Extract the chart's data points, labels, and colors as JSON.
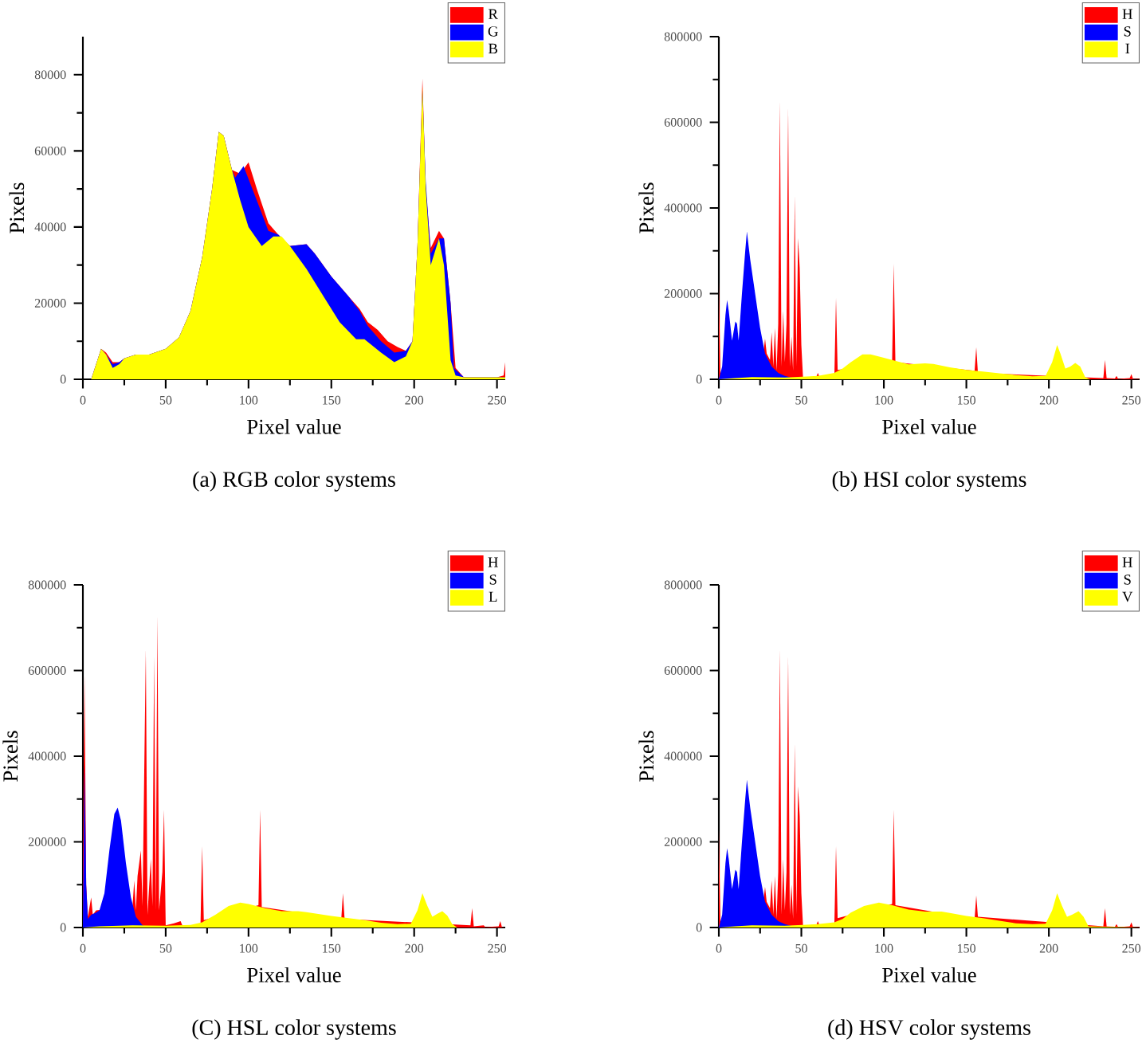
{
  "chart_data": [
    {
      "type": "area",
      "title": "(a) RGB color systems",
      "xlabel": "Pixel value",
      "ylabel": "Pixels",
      "xlim": [
        0,
        255
      ],
      "ylim": [
        0,
        90000
      ],
      "xticks": [
        0,
        50,
        100,
        150,
        200,
        250
      ],
      "yticks": [
        0,
        20000,
        40000,
        60000,
        80000
      ],
      "legend": "top right",
      "series": [
        {
          "name": "R",
          "color": "#ff0000",
          "x": [
            5,
            8,
            11,
            14,
            18,
            22,
            25,
            32,
            40,
            50,
            58,
            65,
            72,
            78,
            82,
            85,
            90,
            95,
            100,
            105,
            112,
            118,
            125,
            135,
            140,
            150,
            160,
            167,
            172,
            178,
            184,
            190,
            195,
            199,
            202,
            205,
            207,
            210,
            215,
            218,
            222,
            225,
            230,
            250,
            254,
            255
          ],
          "values": [
            0,
            4000,
            8000,
            7000,
            4500,
            4500,
            5500,
            6500,
            6500,
            8000,
            11000,
            18000,
            32000,
            50000,
            65000,
            64000,
            55000,
            54000,
            57000,
            50000,
            41000,
            38000,
            35000,
            35500,
            33000,
            27000,
            22000,
            18500,
            15000,
            13000,
            10000,
            8500,
            7500,
            10000,
            35000,
            79000,
            50000,
            34500,
            39000,
            37000,
            20000,
            3000,
            500,
            500,
            1000,
            4500
          ]
        },
        {
          "name": "G",
          "color": "#0000ff",
          "x": [
            5,
            8,
            11,
            14,
            18,
            22,
            25,
            32,
            40,
            50,
            58,
            65,
            72,
            78,
            82,
            85,
            90,
            92,
            97,
            105,
            112,
            118,
            125,
            135,
            140,
            150,
            160,
            167,
            172,
            180,
            188,
            195,
            199,
            202,
            205,
            207,
            210,
            215,
            218,
            222,
            224,
            230,
            250,
            255
          ],
          "values": [
            0,
            4000,
            8000,
            6500,
            4000,
            4500,
            5500,
            6500,
            6500,
            8000,
            11000,
            18000,
            32000,
            50000,
            65000,
            64000,
            55000,
            53000,
            56000,
            47000,
            39000,
            38000,
            35000,
            35500,
            33000,
            27000,
            22000,
            18000,
            14000,
            10000,
            7000,
            7500,
            10000,
            35000,
            76000,
            52000,
            33000,
            37000,
            37000,
            20000,
            3000,
            500,
            500,
            500
          ]
        },
        {
          "name": "B",
          "color": "#ffff00",
          "x": [
            5,
            8,
            11,
            14,
            18,
            22,
            25,
            32,
            40,
            50,
            58,
            65,
            72,
            78,
            82,
            85,
            90,
            95,
            100,
            108,
            115,
            120,
            125,
            135,
            145,
            155,
            165,
            170,
            180,
            188,
            195,
            199,
            202,
            205,
            207,
            210,
            215,
            218,
            222,
            225,
            230,
            250,
            255
          ],
          "values": [
            0,
            4000,
            8000,
            6500,
            3000,
            4000,
            5500,
            6500,
            6500,
            8000,
            11000,
            18000,
            32000,
            50000,
            65000,
            64000,
            55000,
            47000,
            40000,
            35000,
            37500,
            37500,
            35000,
            29000,
            22000,
            15000,
            10500,
            10500,
            7000,
            4500,
            6000,
            10000,
            35000,
            77000,
            50000,
            30000,
            37000,
            30000,
            5000,
            1000,
            500,
            500,
            500
          ]
        }
      ]
    },
    {
      "type": "area",
      "title": "(b) HSI color systems",
      "xlabel": "Pixel value",
      "ylabel": "Pixels",
      "xlim": [
        0,
        255
      ],
      "ylim": [
        0,
        800000
      ],
      "xticks": [
        0,
        50,
        100,
        150,
        200,
        250
      ],
      "yticks": [
        0,
        200000,
        400000,
        600000,
        800000
      ],
      "legend": "top right",
      "series": [
        {
          "name": "H",
          "color": "#ff0000",
          "x": [
            0,
            1,
            25,
            27,
            28,
            29,
            31,
            32,
            33,
            34,
            35,
            36,
            37,
            38,
            39,
            40,
            41,
            42,
            43,
            44,
            45,
            46,
            47,
            48,
            49,
            50,
            51,
            59,
            60,
            61,
            70,
            71,
            72,
            105,
            106,
            107,
            155,
            156,
            157,
            233,
            234,
            235,
            240,
            241,
            242,
            249,
            250,
            251,
            255
          ],
          "values": [
            230000,
            5000,
            5000,
            60000,
            95000,
            60000,
            45000,
            110000,
            30000,
            120000,
            20000,
            130000,
            650000,
            30000,
            160000,
            40000,
            130000,
            635000,
            30000,
            100000,
            20000,
            430000,
            30000,
            330000,
            260000,
            80000,
            5000,
            5000,
            15000,
            5000,
            5000,
            190000,
            22000,
            40000,
            270000,
            40000,
            20000,
            75000,
            15000,
            3000,
            45000,
            3000,
            2000,
            8000,
            1000,
            3000,
            12000,
            1000,
            1000
          ]
        },
        {
          "name": "S",
          "color": "#0000ff",
          "x": [
            0,
            2,
            4,
            5,
            6,
            8,
            10,
            11,
            12,
            14,
            16,
            17,
            19,
            22,
            25,
            28,
            32,
            36,
            40,
            45,
            50
          ],
          "values": [
            0,
            30000,
            150000,
            185000,
            160000,
            90000,
            135000,
            130000,
            90000,
            200000,
            300000,
            345000,
            280000,
            200000,
            120000,
            60000,
            30000,
            15000,
            8000,
            3000,
            0
          ]
        },
        {
          "name": "I",
          "color": "#ffff00",
          "x": [
            0,
            10,
            20,
            40,
            60,
            70,
            75,
            80,
            87,
            92,
            100,
            110,
            115,
            125,
            130,
            140,
            150,
            160,
            170,
            180,
            190,
            198,
            202,
            205,
            207,
            210,
            213,
            216,
            219,
            222,
            225,
            255
          ],
          "values": [
            0,
            3000,
            5000,
            4000,
            8000,
            15000,
            25000,
            40000,
            58000,
            58000,
            50000,
            40000,
            35000,
            37000,
            36000,
            28000,
            22000,
            18000,
            14000,
            10000,
            7000,
            8000,
            40000,
            80000,
            60000,
            25000,
            30000,
            38000,
            30000,
            5000,
            0,
            0
          ]
        }
      ]
    },
    {
      "type": "area",
      "title": "(C) HSL color systems",
      "xlabel": "Pixel value",
      "ylabel": "Pixels",
      "xlim": [
        0,
        255
      ],
      "ylim": [
        0,
        800000
      ],
      "xticks": [
        0,
        50,
        100,
        150,
        200,
        250
      ],
      "yticks": [
        0,
        200000,
        400000,
        600000,
        800000
      ],
      "legend": "top right",
      "series": [
        {
          "name": "H",
          "color": "#ff0000",
          "x": [
            0,
            1,
            2,
            3,
            5,
            6,
            8,
            30,
            31,
            32,
            33,
            35,
            36,
            38,
            39,
            41,
            42,
            43,
            44,
            45,
            46,
            48,
            49,
            50,
            55,
            59,
            60,
            71,
            72,
            73,
            106,
            107,
            108,
            156,
            157,
            158,
            234,
            235,
            236,
            242,
            243,
            251,
            252,
            253,
            255
          ],
          "values": [
            150000,
            590000,
            100000,
            25000,
            70000,
            30000,
            40000,
            50000,
            110000,
            40000,
            120000,
            180000,
            50000,
            650000,
            30000,
            160000,
            50000,
            635000,
            40000,
            730000,
            40000,
            130000,
            275000,
            5000,
            10000,
            15000,
            5000,
            5000,
            190000,
            17000,
            52000,
            275000,
            48000,
            20000,
            80000,
            20000,
            5000,
            45000,
            3000,
            5000,
            1000,
            3000,
            15000,
            1000,
            0
          ]
        },
        {
          "name": "S",
          "color": "#0000ff",
          "x": [
            0,
            1,
            2,
            3,
            5,
            8,
            10,
            13,
            16,
            19,
            21,
            23,
            26,
            29,
            32,
            36,
            40
          ],
          "values": [
            0,
            380000,
            100000,
            20000,
            30000,
            35000,
            40000,
            80000,
            180000,
            265000,
            280000,
            250000,
            150000,
            70000,
            25000,
            5000,
            0
          ]
        },
        {
          "name": "L",
          "color": "#ffff00",
          "x": [
            0,
            10,
            30,
            50,
            65,
            72,
            80,
            88,
            95,
            100,
            110,
            120,
            130,
            135,
            150,
            160,
            170,
            180,
            190,
            198,
            202,
            205,
            208,
            211,
            214,
            217,
            220,
            223,
            226,
            255
          ],
          "values": [
            0,
            3000,
            5000,
            4000,
            6000,
            12000,
            30000,
            50000,
            58000,
            55000,
            45000,
            38000,
            38000,
            36000,
            27000,
            22000,
            17000,
            11000,
            8000,
            9000,
            40000,
            80000,
            50000,
            25000,
            32000,
            38000,
            28000,
            8000,
            0,
            0
          ]
        }
      ]
    },
    {
      "type": "area",
      "title": "(d) HSV color systems",
      "xlabel": "Pixel value",
      "ylabel": "Pixels",
      "xlim": [
        0,
        255
      ],
      "ylim": [
        0,
        800000
      ],
      "xticks": [
        0,
        50,
        100,
        150,
        200,
        250
      ],
      "yticks": [
        0,
        200000,
        400000,
        600000,
        800000
      ],
      "legend": "top right",
      "series": [
        {
          "name": "H",
          "color": "#ff0000",
          "x": [
            0,
            1,
            25,
            27,
            28,
            29,
            31,
            32,
            33,
            34,
            35,
            36,
            37,
            38,
            39,
            40,
            41,
            42,
            43,
            44,
            45,
            46,
            47,
            48,
            49,
            50,
            51,
            59,
            60,
            61,
            70,
            71,
            72,
            105,
            106,
            107,
            155,
            156,
            157,
            233,
            234,
            235,
            240,
            241,
            242,
            249,
            250,
            251,
            255
          ],
          "values": [
            230000,
            5000,
            5000,
            60000,
            95000,
            60000,
            45000,
            110000,
            30000,
            120000,
            20000,
            130000,
            650000,
            30000,
            160000,
            40000,
            130000,
            635000,
            30000,
            100000,
            20000,
            430000,
            30000,
            330000,
            260000,
            80000,
            5000,
            5000,
            15000,
            5000,
            5000,
            190000,
            22000,
            55000,
            275000,
            52000,
            20000,
            75000,
            25000,
            3000,
            45000,
            3000,
            2000,
            8000,
            1000,
            3000,
            12000,
            1000,
            1000
          ]
        },
        {
          "name": "S",
          "color": "#0000ff",
          "x": [
            0,
            2,
            4,
            5,
            6,
            8,
            10,
            11,
            12,
            14,
            16,
            17,
            19,
            22,
            25,
            28,
            32,
            36,
            40,
            45,
            50
          ],
          "values": [
            0,
            30000,
            150000,
            185000,
            160000,
            90000,
            135000,
            130000,
            90000,
            200000,
            300000,
            345000,
            280000,
            200000,
            120000,
            60000,
            30000,
            15000,
            8000,
            3000,
            0
          ]
        },
        {
          "name": "V",
          "color": "#ffff00",
          "x": [
            0,
            10,
            20,
            40,
            60,
            70,
            75,
            80,
            88,
            97,
            105,
            115,
            125,
            135,
            140,
            150,
            160,
            170,
            180,
            190,
            198,
            202,
            205,
            208,
            211,
            214,
            218,
            221,
            224,
            255
          ],
          "values": [
            0,
            3000,
            5000,
            4000,
            8000,
            12000,
            20000,
            35000,
            50000,
            58000,
            52000,
            42000,
            37000,
            37000,
            34000,
            27000,
            22000,
            16000,
            10000,
            8000,
            9000,
            40000,
            80000,
            50000,
            25000,
            30000,
            38000,
            25000,
            3000,
            0
          ]
        }
      ]
    }
  ]
}
